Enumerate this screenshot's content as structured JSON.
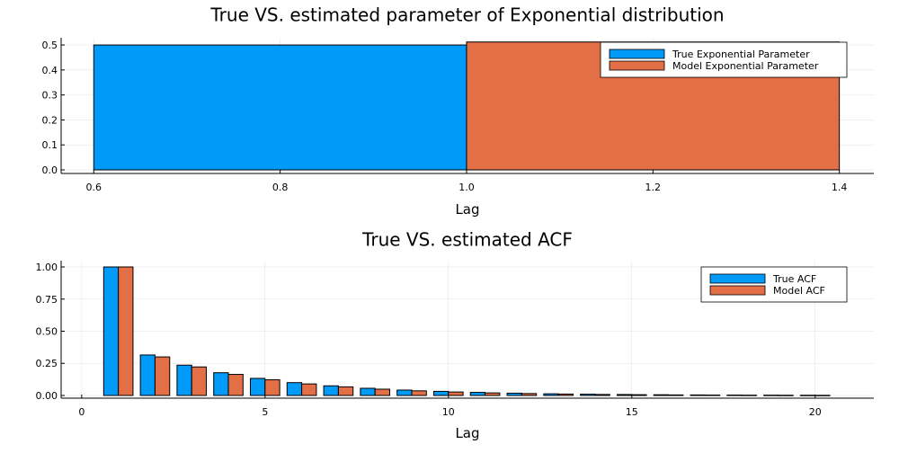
{
  "chart_data": [
    {
      "type": "bar",
      "title": "True VS. estimated parameter of Exponential distribution",
      "xlabel": "Lag",
      "ylabel": "",
      "xlim": [
        0.565,
        1.437
      ],
      "ylim": [
        -0.0144,
        0.529
      ],
      "xticks": [
        0.6,
        0.8,
        1.0,
        1.2,
        1.4
      ],
      "xtick_labels": [
        "0.6",
        "0.8",
        "1.0",
        "1.2",
        "1.4"
      ],
      "yticks": [
        0,
        0.1,
        0.2,
        0.3,
        0.4,
        0.5
      ],
      "ytick_labels": [
        "0.0",
        "0.1",
        "0.2",
        "0.3",
        "0.4",
        "0.5"
      ],
      "grid": true,
      "legend_position": "top-right",
      "series": [
        {
          "name": "True Exponential Parameter",
          "color": "#009af9",
          "bars": [
            {
              "x0": 0.6,
              "x1": 1.0,
              "value": 0.5
            }
          ]
        },
        {
          "name": "Model Exponential Parameter",
          "color": "#e26f46",
          "bars": [
            {
              "x0": 1.0,
              "x1": 1.4,
              "value": 0.512
            }
          ]
        }
      ]
    },
    {
      "type": "bar",
      "title": "True VS. estimated ACF",
      "xlabel": "Lag",
      "ylabel": "",
      "xlim": [
        -0.56,
        21.6
      ],
      "ylim": [
        -0.021,
        1.049
      ],
      "xticks": [
        0,
        5,
        10,
        15,
        20
      ],
      "xtick_labels": [
        "0",
        "5",
        "10",
        "15",
        "20"
      ],
      "yticks": [
        0,
        0.25,
        0.5,
        0.75,
        1.0
      ],
      "ytick_labels": [
        "0.00",
        "0.25",
        "0.50",
        "0.75",
        "1.00"
      ],
      "grid": true,
      "legend_position": "top-right",
      "categories": [
        1,
        2,
        3,
        4,
        5,
        6,
        7,
        8,
        9,
        10,
        11,
        12,
        13,
        14,
        15,
        16,
        17,
        18,
        19,
        20
      ],
      "series": [
        {
          "name": "True ACF",
          "color": "#009af9",
          "offset": -0.2,
          "width": 0.4,
          "values": [
            1.0,
            0.315,
            0.236,
            0.177,
            0.133,
            0.1,
            0.075,
            0.056,
            0.042,
            0.032,
            0.024,
            0.018,
            0.013,
            0.01,
            0.0075,
            0.0056,
            0.0042,
            0.0032,
            0.0024,
            0.0018
          ]
        },
        {
          "name": "Model ACF",
          "color": "#e26f46",
          "offset": 0.2,
          "width": 0.4,
          "values": [
            1.0,
            0.3,
            0.222,
            0.164,
            0.122,
            0.09,
            0.067,
            0.049,
            0.036,
            0.027,
            0.02,
            0.015,
            0.011,
            0.008,
            0.006,
            0.0044,
            0.0033,
            0.0024,
            0.0018,
            0.0013
          ]
        }
      ]
    }
  ]
}
